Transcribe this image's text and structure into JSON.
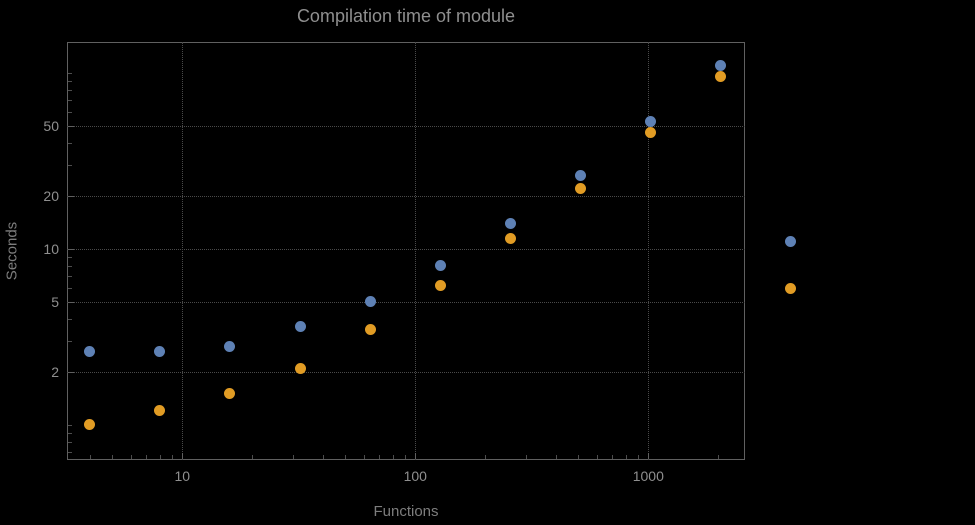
{
  "chart_data": {
    "type": "scatter",
    "title": "Compilation time of module",
    "xlabel": "Functions",
    "ylabel": "Seconds",
    "x_scale": "log",
    "y_scale": "log",
    "xlim": [
      3.2,
      2600
    ],
    "ylim": [
      0.63,
      150
    ],
    "grid": true,
    "legend_position": "right",
    "x": [
      4,
      8,
      16,
      32,
      64,
      128,
      256,
      512,
      1024,
      2048
    ],
    "x_ticks": [
      {
        "value": 10,
        "label": "10"
      },
      {
        "value": 100,
        "label": "100"
      },
      {
        "value": 1000,
        "label": "1000"
      }
    ],
    "y_ticks": [
      {
        "value": 2,
        "label": "2"
      },
      {
        "value": 5,
        "label": "5"
      },
      {
        "value": 10,
        "label": "10"
      },
      {
        "value": 20,
        "label": "20"
      },
      {
        "value": 50,
        "label": "50"
      }
    ],
    "series": [
      {
        "name": "series-1",
        "color": "#5e81b5",
        "values": [
          2.6,
          2.6,
          2.8,
          3.6,
          5.0,
          8.0,
          14,
          26,
          53,
          110
        ]
      },
      {
        "name": "series-2",
        "color": "#e19c24",
        "values": [
          1.0,
          1.2,
          1.5,
          2.1,
          3.5,
          6.2,
          11.5,
          22,
          46,
          95
        ]
      }
    ]
  },
  "colors": {
    "background": "#000000",
    "frame": "#606060",
    "gridline": "#4a4a4a",
    "text": "#8f8f8f",
    "axis_label": "#7d7d7d"
  }
}
